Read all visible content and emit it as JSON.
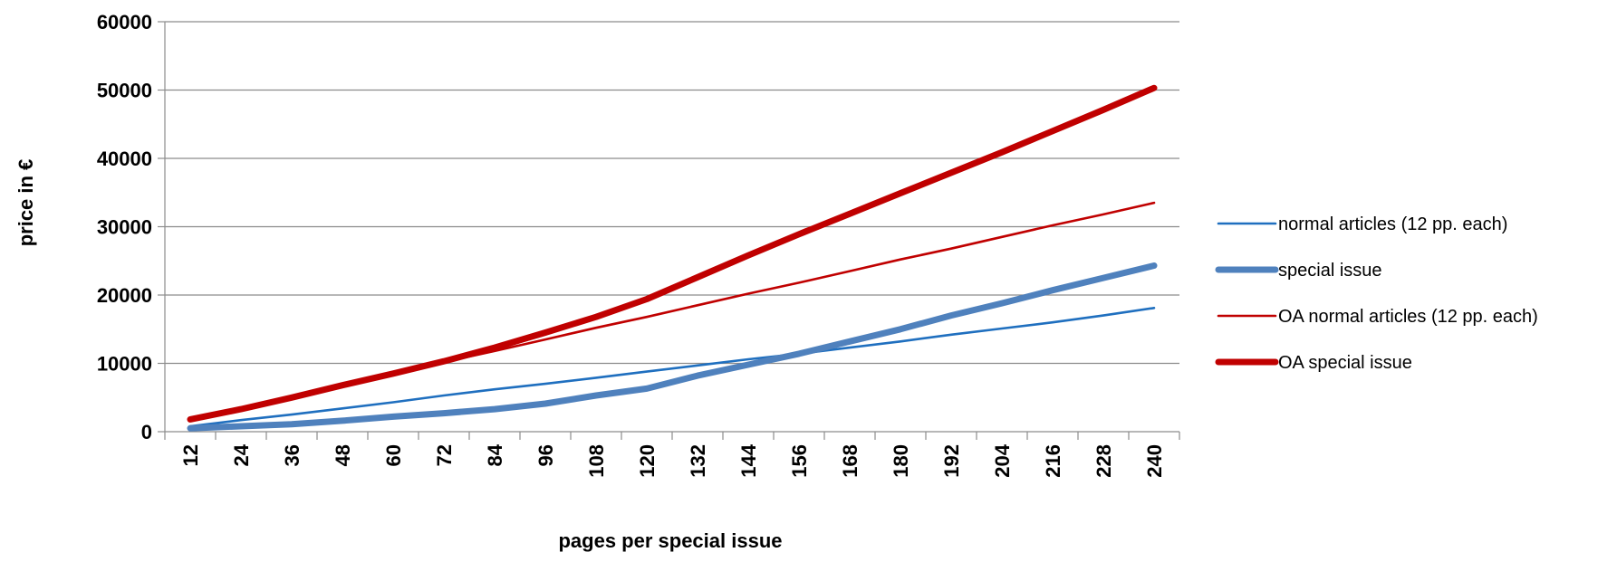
{
  "chart_data": {
    "type": "line",
    "title": "",
    "xlabel": "pages per special issue",
    "ylabel": "price in €",
    "ylim": [
      0,
      60000
    ],
    "yticks": [
      0,
      10000,
      20000,
      30000,
      40000,
      50000,
      60000
    ],
    "grid": "horizontal",
    "legend_position": "right",
    "categories": [
      "12",
      "24",
      "36",
      "48",
      "60",
      "72",
      "84",
      "96",
      "108",
      "120",
      "132",
      "144",
      "156",
      "168",
      "180",
      "192",
      "204",
      "216",
      "228",
      "240"
    ],
    "series": [
      {
        "name": "normal articles (12 pp. each)",
        "color": "#1f6fbf",
        "weight": "thin",
        "values": [
          800,
          1700,
          2500,
          3400,
          4300,
          5300,
          6200,
          7000,
          7900,
          8800,
          9700,
          10600,
          11400,
          12300,
          13200,
          14200,
          15100,
          16000,
          17000,
          18100
        ]
      },
      {
        "name": "special issue",
        "color": "#4f81bd",
        "weight": "thick",
        "values": [
          500,
          800,
          1100,
          1600,
          2200,
          2700,
          3300,
          4100,
          5300,
          6300,
          8200,
          9800,
          11400,
          13200,
          15000,
          17000,
          18800,
          20700,
          22500,
          24300
        ]
      },
      {
        "name": "OA normal articles (12 pp. each)",
        "color": "#c00000",
        "weight": "thin",
        "values": [
          1600,
          3300,
          5000,
          6700,
          8500,
          10200,
          11800,
          13500,
          15200,
          16800,
          18500,
          20200,
          21800,
          23500,
          25200,
          26800,
          28500,
          30200,
          31800,
          33500
        ]
      },
      {
        "name": "OA special issue",
        "color": "#c00000",
        "weight": "thick",
        "values": [
          1800,
          3300,
          5000,
          6800,
          8500,
          10300,
          12300,
          14500,
          16800,
          19400,
          22600,
          25800,
          28900,
          31900,
          34900,
          37900,
          40900,
          44000,
          47100,
          50300
        ]
      }
    ]
  }
}
